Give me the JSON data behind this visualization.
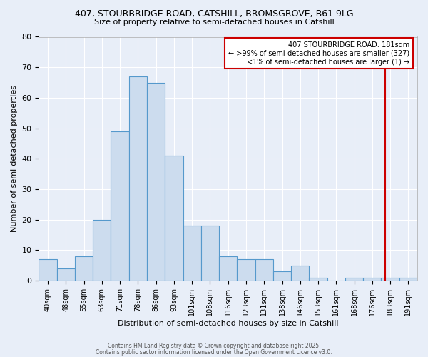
{
  "title1": "407, STOURBRIDGE ROAD, CATSHILL, BROMSGROVE, B61 9LG",
  "title2": "Size of property relative to semi-detached houses in Catshill",
  "xlabel": "Distribution of semi-detached houses by size in Catshill",
  "ylabel": "Number of semi-detached properties",
  "categories": [
    "40sqm",
    "48sqm",
    "55sqm",
    "63sqm",
    "71sqm",
    "78sqm",
    "86sqm",
    "93sqm",
    "101sqm",
    "108sqm",
    "116sqm",
    "123sqm",
    "131sqm",
    "138sqm",
    "146sqm",
    "153sqm",
    "161sqm",
    "168sqm",
    "176sqm",
    "183sqm",
    "191sqm"
  ],
  "values": [
    7,
    4,
    8,
    20,
    49,
    67,
    65,
    41,
    18,
    18,
    8,
    7,
    7,
    3,
    5,
    1,
    0,
    1,
    1,
    1,
    1
  ],
  "bar_color": "#ccdcee",
  "bar_edge_color": "#5599cc",
  "background_color": "#e8eef8",
  "grid_color": "#ffffff",
  "annotation_line_color": "#cc0000",
  "annotation_box_text": "407 STOURBRIDGE ROAD: 181sqm\n← >99% of semi-detached houses are smaller (327)\n<1% of semi-detached houses are larger (1) →",
  "annotation_box_color": "#ffffff",
  "annotation_box_edge_color": "#cc0000",
  "footer1": "Contains HM Land Registry data © Crown copyright and database right 2025.",
  "footer2": "Contains public sector information licensed under the Open Government Licence v3.0.",
  "ylim": [
    0,
    80
  ],
  "yticks": [
    0,
    10,
    20,
    30,
    40,
    50,
    60,
    70,
    80
  ]
}
